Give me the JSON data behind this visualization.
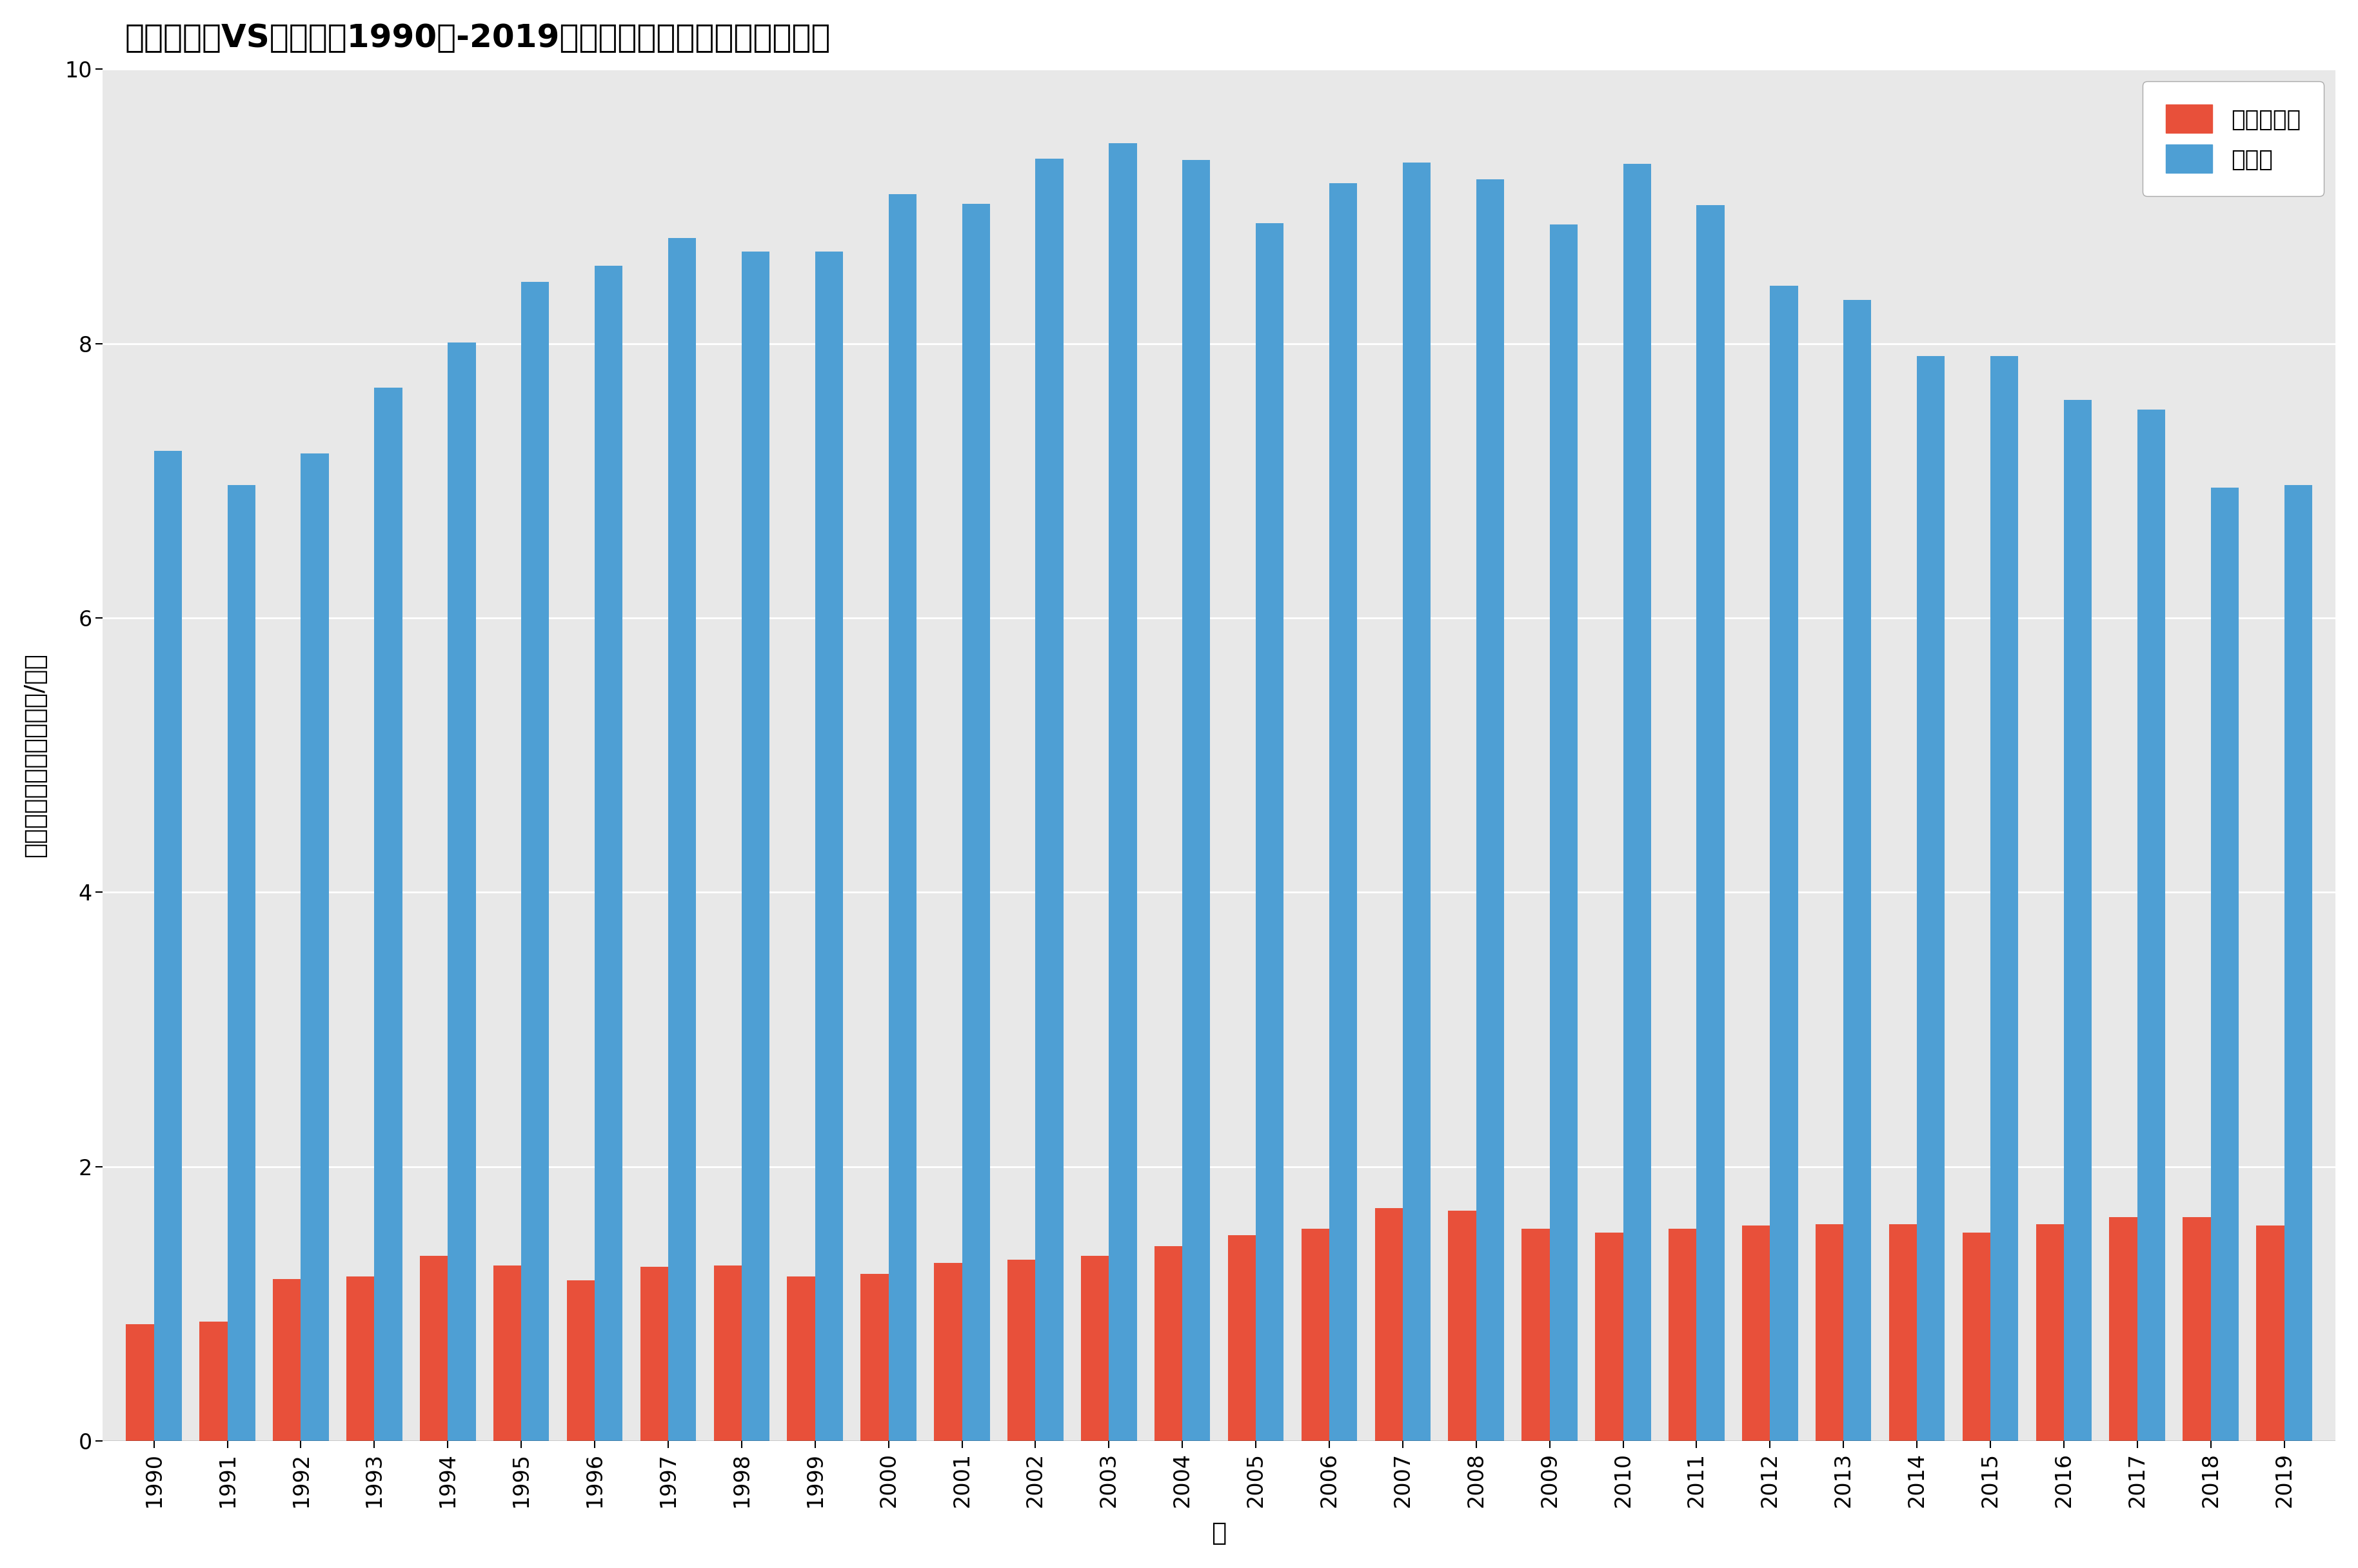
{
  "title": "哥斯达黎加VS以色列：1990年-2019年人均二氧化碳排放量趋势对比",
  "xlabel": "年",
  "ylabel": "人均二氧化碳排放量（吨/人）",
  "years": [
    1990,
    1991,
    1992,
    1993,
    1994,
    1995,
    1996,
    1997,
    1998,
    1999,
    2000,
    2001,
    2002,
    2003,
    2004,
    2005,
    2006,
    2007,
    2008,
    2009,
    2010,
    2011,
    2012,
    2013,
    2014,
    2015,
    2016,
    2017,
    2018,
    2019
  ],
  "costa_rica": [
    0.85,
    0.87,
    1.18,
    1.2,
    1.35,
    1.28,
    1.17,
    1.27,
    1.28,
    1.2,
    1.22,
    1.3,
    1.32,
    1.35,
    1.42,
    1.5,
    1.55,
    1.7,
    1.68,
    1.55,
    1.52,
    1.55,
    1.57,
    1.58,
    1.58,
    1.52,
    1.58,
    1.63,
    1.63,
    1.57
  ],
  "israel": [
    7.22,
    6.97,
    7.2,
    7.68,
    8.01,
    8.45,
    8.57,
    8.77,
    8.67,
    8.67,
    9.09,
    9.02,
    9.35,
    9.46,
    9.34,
    8.88,
    9.17,
    9.32,
    9.2,
    8.87,
    9.31,
    9.01,
    8.42,
    8.32,
    7.91,
    7.91,
    7.59,
    7.52,
    6.95,
    6.97
  ],
  "color_costa_rica": "#e8503a",
  "color_israel": "#4e9fd4",
  "background_color": "#e8e8e8",
  "fig_facecolor": "#ffffff",
  "ylim": [
    0,
    10
  ],
  "yticks": [
    0,
    2,
    4,
    6,
    8,
    10
  ],
  "bar_width": 0.38,
  "title_fontsize": 36,
  "axis_label_fontsize": 28,
  "tick_fontsize": 24,
  "legend_fontsize": 26,
  "ylabel_rotation": 90
}
